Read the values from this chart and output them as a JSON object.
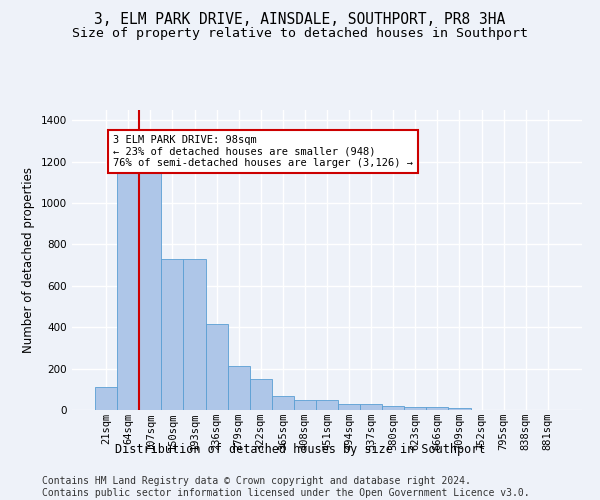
{
  "title": "3, ELM PARK DRIVE, AINSDALE, SOUTHPORT, PR8 3HA",
  "subtitle": "Size of property relative to detached houses in Southport",
  "xlabel": "Distribution of detached houses by size in Southport",
  "ylabel": "Number of detached properties",
  "categories": [
    "21sqm",
    "64sqm",
    "107sqm",
    "150sqm",
    "193sqm",
    "236sqm",
    "279sqm",
    "322sqm",
    "365sqm",
    "408sqm",
    "451sqm",
    "494sqm",
    "537sqm",
    "580sqm",
    "623sqm",
    "666sqm",
    "709sqm",
    "752sqm",
    "795sqm",
    "838sqm",
    "881sqm"
  ],
  "values": [
    110,
    1160,
    1155,
    730,
    730,
    415,
    215,
    150,
    70,
    50,
    50,
    30,
    30,
    20,
    15,
    15,
    10,
    0,
    0,
    0,
    0
  ],
  "bar_color": "#aec6e8",
  "bar_edge_color": "#5a9fd4",
  "red_line_index": 1.5,
  "annotation_text": "3 ELM PARK DRIVE: 98sqm\n← 23% of detached houses are smaller (948)\n76% of semi-detached houses are larger (3,126) →",
  "annotation_box_color": "#ffffff",
  "annotation_border_color": "#cc0000",
  "footer_text": "Contains HM Land Registry data © Crown copyright and database right 2024.\nContains public sector information licensed under the Open Government Licence v3.0.",
  "ylim": [
    0,
    1450
  ],
  "background_color": "#eef2f9",
  "grid_color": "#ffffff",
  "title_fontsize": 10.5,
  "subtitle_fontsize": 9.5,
  "axis_label_fontsize": 8.5,
  "tick_fontsize": 7.5,
  "footer_fontsize": 7,
  "annotation_fontsize": 7.5
}
